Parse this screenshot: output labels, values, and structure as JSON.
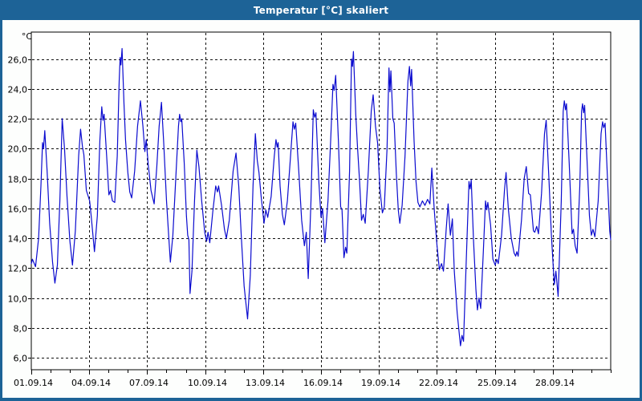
{
  "window": {
    "title": "Temperatur [°C] skaliert"
  },
  "colors": {
    "frame": "#1d6397",
    "titlebar_text": "#ffffff",
    "plot_background": "#ffffff",
    "plot_border": "#000000",
    "gridline": "#111111",
    "series_line": "#0b0bcf",
    "tick_label": "#000000"
  },
  "chart_data": {
    "type": "line",
    "title": "Temperatur [°C] skaliert",
    "y_axis_unit_label": "°C",
    "grid": "dashed",
    "legend": "none",
    "x_domain": [
      1,
      31
    ],
    "y_domain": [
      5.2,
      27.8
    ],
    "x_ticks": [
      {
        "day": 1,
        "label": "01.09.14"
      },
      {
        "day": 4,
        "label": "04.09.14"
      },
      {
        "day": 7,
        "label": "07.09.14"
      },
      {
        "day": 10,
        "label": "10.09.14"
      },
      {
        "day": 13,
        "label": "13.09.14"
      },
      {
        "day": 16,
        "label": "16.09.14"
      },
      {
        "day": 19,
        "label": "19.09.14"
      },
      {
        "day": 22,
        "label": "22.09.14"
      },
      {
        "day": 25,
        "label": "25.09.14"
      },
      {
        "day": 28,
        "label": "28.09.14"
      }
    ],
    "y_ticks": [
      {
        "value": 6,
        "label": "6,0"
      },
      {
        "value": 8,
        "label": "8,0"
      },
      {
        "value": 10,
        "label": "10,0"
      },
      {
        "value": 12,
        "label": "12,0"
      },
      {
        "value": 14,
        "label": "14,0"
      },
      {
        "value": 16,
        "label": "16,0"
      },
      {
        "value": 18,
        "label": "18,0"
      },
      {
        "value": 20,
        "label": "20,0"
      },
      {
        "value": 22,
        "label": "22,0"
      },
      {
        "value": 24,
        "label": "24,0"
      },
      {
        "value": 26,
        "label": "26,0"
      }
    ],
    "series": [
      {
        "name": "Temperatur",
        "unit": "°C",
        "points": [
          [
            1.0,
            12.3
          ],
          [
            1.06,
            12.6
          ],
          [
            1.12,
            12.4
          ],
          [
            1.22,
            12.1
          ],
          [
            1.38,
            14.0
          ],
          [
            1.5,
            17.5
          ],
          [
            1.58,
            20.4
          ],
          [
            1.63,
            20.0
          ],
          [
            1.7,
            21.2
          ],
          [
            1.82,
            18.5
          ],
          [
            1.95,
            15.0
          ],
          [
            2.1,
            12.4
          ],
          [
            2.22,
            11.0
          ],
          [
            2.35,
            12.2
          ],
          [
            2.48,
            16.5
          ],
          [
            2.6,
            22.0
          ],
          [
            2.72,
            20.0
          ],
          [
            2.85,
            16.8
          ],
          [
            3.0,
            13.8
          ],
          [
            3.13,
            12.2
          ],
          [
            3.28,
            14.5
          ],
          [
            3.45,
            19.5
          ],
          [
            3.55,
            21.3
          ],
          [
            3.65,
            20.1
          ],
          [
            3.72,
            19.6
          ],
          [
            3.85,
            17.2
          ],
          [
            3.95,
            16.8
          ],
          [
            4.02,
            16.5
          ],
          [
            4.1,
            15.5
          ],
          [
            4.27,
            13.1
          ],
          [
            4.42,
            15.5
          ],
          [
            4.55,
            20.5
          ],
          [
            4.65,
            22.8
          ],
          [
            4.71,
            21.9
          ],
          [
            4.77,
            22.3
          ],
          [
            4.9,
            19.5
          ],
          [
            5.02,
            16.9
          ],
          [
            5.1,
            17.2
          ],
          [
            5.2,
            16.5
          ],
          [
            5.32,
            16.4
          ],
          [
            5.45,
            19.5
          ],
          [
            5.55,
            24.5
          ],
          [
            5.6,
            26.1
          ],
          [
            5.64,
            25.6
          ],
          [
            5.7,
            26.7
          ],
          [
            5.8,
            23.0
          ],
          [
            5.88,
            20.6
          ],
          [
            6.0,
            18.4
          ],
          [
            6.1,
            17.1
          ],
          [
            6.2,
            16.7
          ],
          [
            6.35,
            18.5
          ],
          [
            6.5,
            21.5
          ],
          [
            6.65,
            23.2
          ],
          [
            6.78,
            21.5
          ],
          [
            6.88,
            19.8
          ],
          [
            6.95,
            20.6
          ],
          [
            7.05,
            19.0
          ],
          [
            7.2,
            17.2
          ],
          [
            7.36,
            16.3
          ],
          [
            7.5,
            18.8
          ],
          [
            7.62,
            21.5
          ],
          [
            7.74,
            23.1
          ],
          [
            7.85,
            20.5
          ],
          [
            8.0,
            16.5
          ],
          [
            8.12,
            14.0
          ],
          [
            8.2,
            12.4
          ],
          [
            8.33,
            14.2
          ],
          [
            8.5,
            18.5
          ],
          [
            8.62,
            21.5
          ],
          [
            8.68,
            22.3
          ],
          [
            8.74,
            21.8
          ],
          [
            8.79,
            22.0
          ],
          [
            8.92,
            19.0
          ],
          [
            9.03,
            15.5
          ],
          [
            9.1,
            14.2
          ],
          [
            9.16,
            13.9
          ],
          [
            9.22,
            10.3
          ],
          [
            9.32,
            11.8
          ],
          [
            9.45,
            16.5
          ],
          [
            9.57,
            19.9
          ],
          [
            9.68,
            18.8
          ],
          [
            9.82,
            16.5
          ],
          [
            9.98,
            14.4
          ],
          [
            10.08,
            13.8
          ],
          [
            10.15,
            14.4
          ],
          [
            10.24,
            13.7
          ],
          [
            10.4,
            15.8
          ],
          [
            10.55,
            17.5
          ],
          [
            10.64,
            17.1
          ],
          [
            10.7,
            17.5
          ],
          [
            10.85,
            16.2
          ],
          [
            11.0,
            14.6
          ],
          [
            11.1,
            14.0
          ],
          [
            11.25,
            15.2
          ],
          [
            11.45,
            18.5
          ],
          [
            11.6,
            19.7
          ],
          [
            11.74,
            17.5
          ],
          [
            11.88,
            14.0
          ],
          [
            12.02,
            10.8
          ],
          [
            12.2,
            8.6
          ],
          [
            12.34,
            11.5
          ],
          [
            12.48,
            17.5
          ],
          [
            12.6,
            21.0
          ],
          [
            12.7,
            19.2
          ],
          [
            12.79,
            18.4
          ],
          [
            12.9,
            16.8
          ],
          [
            13.05,
            15.0
          ],
          [
            13.14,
            15.9
          ],
          [
            13.24,
            15.4
          ],
          [
            13.42,
            16.8
          ],
          [
            13.58,
            19.5
          ],
          [
            13.67,
            20.6
          ],
          [
            13.73,
            20.1
          ],
          [
            13.78,
            20.4
          ],
          [
            13.88,
            17.5
          ],
          [
            14.0,
            15.6
          ],
          [
            14.1,
            14.9
          ],
          [
            14.26,
            16.5
          ],
          [
            14.45,
            20.0
          ],
          [
            14.55,
            21.8
          ],
          [
            14.62,
            21.3
          ],
          [
            14.69,
            21.7
          ],
          [
            14.85,
            18.5
          ],
          [
            15.0,
            15.2
          ],
          [
            15.14,
            13.5
          ],
          [
            15.24,
            14.4
          ],
          [
            15.34,
            11.3
          ],
          [
            15.48,
            16.5
          ],
          [
            15.6,
            22.6
          ],
          [
            15.67,
            22.1
          ],
          [
            15.74,
            22.4
          ],
          [
            15.88,
            18.0
          ],
          [
            16.0,
            15.4
          ],
          [
            16.08,
            16.0
          ],
          [
            16.2,
            13.7
          ],
          [
            16.36,
            16.5
          ],
          [
            16.5,
            20.5
          ],
          [
            16.62,
            24.3
          ],
          [
            16.68,
            23.9
          ],
          [
            16.76,
            24.9
          ],
          [
            16.9,
            20.5
          ],
          [
            17.02,
            16.1
          ],
          [
            17.09,
            15.9
          ],
          [
            17.19,
            12.7
          ],
          [
            17.27,
            13.4
          ],
          [
            17.34,
            13.0
          ],
          [
            17.48,
            18.5
          ],
          [
            17.58,
            26.0
          ],
          [
            17.63,
            25.5
          ],
          [
            17.68,
            26.5
          ],
          [
            17.8,
            22.3
          ],
          [
            17.89,
            20.1
          ],
          [
            18.0,
            17.8
          ],
          [
            18.1,
            15.2
          ],
          [
            18.19,
            15.6
          ],
          [
            18.29,
            15.0
          ],
          [
            18.45,
            18.5
          ],
          [
            18.6,
            22.5
          ],
          [
            18.7,
            23.6
          ],
          [
            18.82,
            21.5
          ],
          [
            18.93,
            20.4
          ],
          [
            19.05,
            17.3
          ],
          [
            19.18,
            15.7
          ],
          [
            19.28,
            16.1
          ],
          [
            19.42,
            20.0
          ],
          [
            19.52,
            25.4
          ],
          [
            19.57,
            23.8
          ],
          [
            19.62,
            25.2
          ],
          [
            19.72,
            22.0
          ],
          [
            19.79,
            21.7
          ],
          [
            19.9,
            18.3
          ],
          [
            20.0,
            15.9
          ],
          [
            20.08,
            15.0
          ],
          [
            20.2,
            16.2
          ],
          [
            20.35,
            19.5
          ],
          [
            20.5,
            24.5
          ],
          [
            20.58,
            25.5
          ],
          [
            20.64,
            24.2
          ],
          [
            20.69,
            25.3
          ],
          [
            20.82,
            20.5
          ],
          [
            20.92,
            17.8
          ],
          [
            21.02,
            16.4
          ],
          [
            21.12,
            16.1
          ],
          [
            21.25,
            16.5
          ],
          [
            21.38,
            16.2
          ],
          [
            21.52,
            16.6
          ],
          [
            21.64,
            16.3
          ],
          [
            21.74,
            18.7
          ],
          [
            21.86,
            16.0
          ],
          [
            22.0,
            13.6
          ],
          [
            22.13,
            11.9
          ],
          [
            22.24,
            12.3
          ],
          [
            22.34,
            11.8
          ],
          [
            22.48,
            14.6
          ],
          [
            22.58,
            16.3
          ],
          [
            22.7,
            14.2
          ],
          [
            22.8,
            15.3
          ],
          [
            22.9,
            11.8
          ],
          [
            23.05,
            9.0
          ],
          [
            23.22,
            6.8
          ],
          [
            23.3,
            7.5
          ],
          [
            23.38,
            7.1
          ],
          [
            23.52,
            12.5
          ],
          [
            23.66,
            17.8
          ],
          [
            23.72,
            17.3
          ],
          [
            23.78,
            17.9
          ],
          [
            23.9,
            13.8
          ],
          [
            24.02,
            10.6
          ],
          [
            24.1,
            9.2
          ],
          [
            24.18,
            10.0
          ],
          [
            24.27,
            9.3
          ],
          [
            24.4,
            13.0
          ],
          [
            24.52,
            16.5
          ],
          [
            24.58,
            15.9
          ],
          [
            24.64,
            16.4
          ],
          [
            24.78,
            14.9
          ],
          [
            24.9,
            12.6
          ],
          [
            25.02,
            12.2
          ],
          [
            25.1,
            12.6
          ],
          [
            25.18,
            12.3
          ],
          [
            25.35,
            14.2
          ],
          [
            25.5,
            17.2
          ],
          [
            25.58,
            18.4
          ],
          [
            25.7,
            16.0
          ],
          [
            25.85,
            14.0
          ],
          [
            26.0,
            13.0
          ],
          [
            26.08,
            12.8
          ],
          [
            26.14,
            13.1
          ],
          [
            26.21,
            12.8
          ],
          [
            26.38,
            15.2
          ],
          [
            26.52,
            18.0
          ],
          [
            26.63,
            18.8
          ],
          [
            26.75,
            17.0
          ],
          [
            26.84,
            16.9
          ],
          [
            27.0,
            14.5
          ],
          [
            27.07,
            14.4
          ],
          [
            27.17,
            14.8
          ],
          [
            27.26,
            14.3
          ],
          [
            27.42,
            17.0
          ],
          [
            27.57,
            21.0
          ],
          [
            27.66,
            21.9
          ],
          [
            27.8,
            18.0
          ],
          [
            27.93,
            14.2
          ],
          [
            28.08,
            10.9
          ],
          [
            28.16,
            11.8
          ],
          [
            28.28,
            10.1
          ],
          [
            28.44,
            16.5
          ],
          [
            28.54,
            22.5
          ],
          [
            28.6,
            23.2
          ],
          [
            28.66,
            22.6
          ],
          [
            28.71,
            23.0
          ],
          [
            28.85,
            19.0
          ],
          [
            29.0,
            14.3
          ],
          [
            29.07,
            14.6
          ],
          [
            29.16,
            13.5
          ],
          [
            29.26,
            13.0
          ],
          [
            29.4,
            17.5
          ],
          [
            29.49,
            22.5
          ],
          [
            29.54,
            23.0
          ],
          [
            29.6,
            22.4
          ],
          [
            29.65,
            22.9
          ],
          [
            29.8,
            18.5
          ],
          [
            29.9,
            15.5
          ],
          [
            30.0,
            14.2
          ],
          [
            30.08,
            14.6
          ],
          [
            30.18,
            14.1
          ],
          [
            30.35,
            16.5
          ],
          [
            30.5,
            21.0
          ],
          [
            30.58,
            21.8
          ],
          [
            30.64,
            21.4
          ],
          [
            30.71,
            21.7
          ],
          [
            30.85,
            17.5
          ],
          [
            30.95,
            14.5
          ],
          [
            31.0,
            13.9
          ]
        ]
      }
    ]
  }
}
